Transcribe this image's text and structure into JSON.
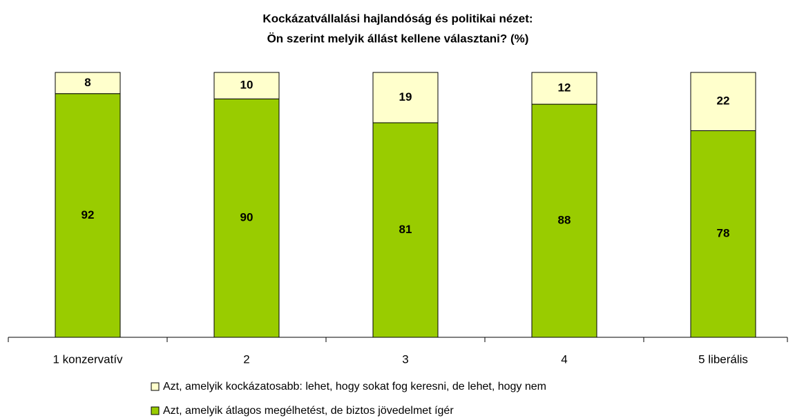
{
  "chart_data": {
    "type": "stacked_bar",
    "title": "Kockázatvállalási hajlandóság és politikai nézet:",
    "subtitle": "Ön szerint melyik állást kellene választani? (%)",
    "categories": [
      "1 konzervatív",
      "2",
      "3",
      "4",
      "5 liberális"
    ],
    "series": [
      {
        "name": "Azt, amelyik átlagos megélhetést, de biztos jövedelmet ígér",
        "color": "#99cc00",
        "values": [
          92,
          90,
          81,
          88,
          78
        ]
      },
      {
        "name": "Azt, amelyik kockázatosabb: lehet, hogy sokat fog keresni, de lehet, hogy nem",
        "color": "#ffffcc",
        "values": [
          8,
          10,
          19,
          12,
          22
        ]
      }
    ],
    "ylim": [
      0,
      100
    ]
  }
}
